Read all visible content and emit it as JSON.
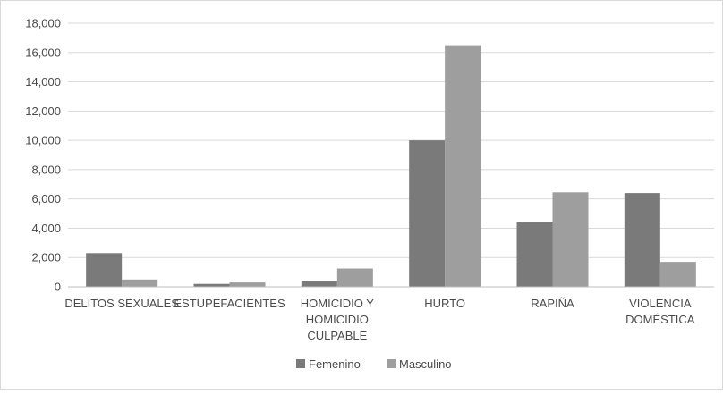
{
  "chart_data": {
    "type": "bar",
    "title": "",
    "xlabel": "",
    "ylabel": "",
    "categories": [
      [
        "DELITOS SEXUALES"
      ],
      [
        "ESTUPEFACIENTES"
      ],
      [
        "HOMICIDIO Y",
        "HOMICIDIO",
        "CULPABLE"
      ],
      [
        "HURTO"
      ],
      [
        "RAPIÑA"
      ],
      [
        "VIOLENCIA",
        "DOMÉSTICA"
      ]
    ],
    "series": [
      {
        "name": "Femenino",
        "color": "#7a7a7a",
        "values": [
          2300,
          200,
          400,
          10000,
          4400,
          6400
        ]
      },
      {
        "name": "Masculino",
        "color": "#9e9e9e",
        "values": [
          500,
          300,
          1250,
          16500,
          6450,
          1700
        ]
      }
    ],
    "ylim": [
      0,
      18000
    ],
    "yticks": [
      "0",
      "2,000",
      "4,000",
      "6,000",
      "8,000",
      "10,000",
      "12,000",
      "14,000",
      "16,000",
      "18,000"
    ],
    "grid": true,
    "legend_position": "bottom"
  }
}
